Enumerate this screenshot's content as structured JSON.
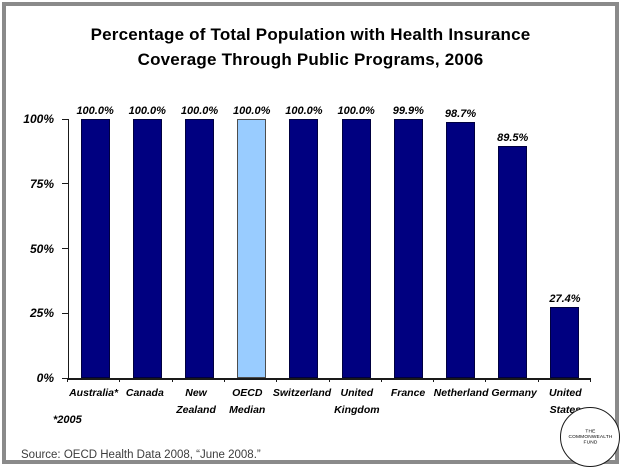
{
  "title": "Percentage of Total Population with Health Insurance\nCoverage Through Public Programs, 2006",
  "chart_data": {
    "type": "bar",
    "title": "Percentage of Total Population with Health Insurance Coverage Through Public Programs, 2006",
    "categories": [
      "Australia*",
      "Canada",
      "New\nZealand",
      "OECD\nMedian",
      "Switzerland",
      "United\nKingdom",
      "France",
      "Netherland",
      "Germany",
      "United\nStates"
    ],
    "values": [
      100.0,
      100.0,
      100.0,
      100.0,
      100.0,
      100.0,
      99.9,
      98.7,
      89.5,
      27.4
    ],
    "value_labels": [
      "100.0%",
      "100.0%",
      "100.0%",
      "100.0%",
      "100.0%",
      "100.0%",
      "99.9%",
      "98.7%",
      "89.5%",
      "27.4%"
    ],
    "highlight_index": 3,
    "bar_color": "#000080",
    "highlight_color": "#99CCFF",
    "bar_border_color": "#000040",
    "highlight_border_color": "#4d4d4d",
    "xlabel": "",
    "ylabel": "",
    "ylim": [
      0,
      100
    ],
    "yticks": [
      "0%",
      "25%",
      "50%",
      "75%",
      "100%"
    ],
    "grid": "off",
    "legend": "none"
  },
  "footnote": "*2005",
  "source": "Source: OECD Health Data 2008, “June 2008.”",
  "logo": {
    "line1": "THE",
    "line2": "COMMONWEALTH",
    "line3": "FUND"
  }
}
